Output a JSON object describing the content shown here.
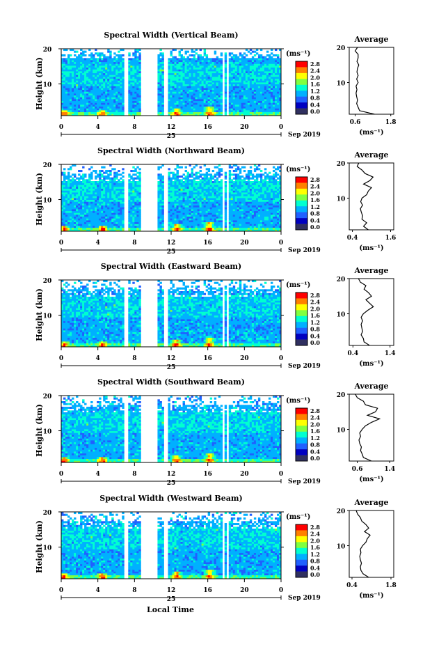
{
  "figure": {
    "xaxis_title": "Local Time",
    "day_label": "25",
    "month_label": "Sep 2019",
    "ylabel": "Height (km)",
    "unit_label": "(ms⁻¹)",
    "avg_title": "Average",
    "avg_xlabel": "(ms⁻¹)"
  },
  "colorbar": {
    "ticks": [
      "2.8",
      "2.4",
      "2.0",
      "1.6",
      "1.2",
      "0.8",
      "0.4",
      "0.0"
    ],
    "colors": [
      "#ff0000",
      "#ff8000",
      "#ffff00",
      "#80ff40",
      "#00ffd0",
      "#00b0ff",
      "#2060ff",
      "#0000c0",
      "#303060"
    ]
  },
  "chart_data": [
    {
      "type": "heatmap",
      "title": "Spectral Width (Vertical Beam)",
      "x_ticks": [
        "0",
        "4",
        "8",
        "12",
        "16",
        "20",
        "0"
      ],
      "y_ticks": [
        "20",
        "10"
      ],
      "xlim": [
        0,
        24
      ],
      "ylim": [
        1,
        20
      ],
      "gaps_hours": [
        [
          6.9,
          7.3
        ],
        [
          8.7,
          10.4
        ],
        [
          11.1,
          11.7
        ],
        [
          17.6,
          17.8
        ],
        [
          18.1,
          18.3
        ]
      ],
      "average_profile": {
        "x_ticks": [
          "0.6",
          "1.8"
        ],
        "xlim": [
          0.4,
          1.9
        ],
        "y_ticks": [
          "20",
          "10"
        ],
        "ylim": [
          1,
          20
        ],
        "height_km": [
          1,
          2,
          3,
          4,
          5,
          6,
          7,
          8,
          9,
          10,
          11,
          12,
          13,
          14,
          15,
          16,
          17,
          18,
          19,
          20
        ],
        "width_ms": [
          1.25,
          0.75,
          0.7,
          0.65,
          0.68,
          0.65,
          0.63,
          0.66,
          0.63,
          0.7,
          0.65,
          0.7,
          0.66,
          0.68,
          0.72,
          0.66,
          0.7,
          0.7,
          0.6,
          0.68
        ]
      }
    },
    {
      "type": "heatmap",
      "title": "Spectral Width (Northward Beam)",
      "x_ticks": [
        "0",
        "4",
        "8",
        "12",
        "16",
        "20",
        "0"
      ],
      "y_ticks": [
        "20",
        "10"
      ],
      "xlim": [
        0,
        24
      ],
      "ylim": [
        1,
        20
      ],
      "gaps_hours": [
        [
          6.9,
          7.3
        ],
        [
          8.7,
          10.4
        ],
        [
          11.1,
          11.7
        ],
        [
          17.6,
          17.8
        ],
        [
          18.1,
          18.3
        ]
      ],
      "average_profile": {
        "x_ticks": [
          "0.4",
          "1.6"
        ],
        "xlim": [
          0.3,
          1.7
        ],
        "y_ticks": [
          "20",
          "10"
        ],
        "ylim": [
          1,
          20
        ],
        "height_km": [
          1,
          2,
          3,
          4,
          5,
          6,
          7,
          8,
          9,
          10,
          11,
          12,
          13,
          14,
          15,
          16,
          17,
          18,
          19,
          20
        ],
        "width_ms": [
          0.9,
          0.75,
          0.85,
          0.7,
          0.72,
          0.68,
          0.65,
          0.72,
          0.66,
          0.7,
          0.85,
          0.9,
          1.0,
          0.75,
          0.95,
          1.05,
          0.8,
          0.7,
          0.55,
          0.6
        ]
      }
    },
    {
      "type": "heatmap",
      "title": "Spectral Width (Eastward Beam)",
      "x_ticks": [
        "0",
        "4",
        "8",
        "12",
        "16",
        "20",
        "0"
      ],
      "y_ticks": [
        "20",
        "10"
      ],
      "xlim": [
        0,
        24
      ],
      "ylim": [
        1,
        20
      ],
      "gaps_hours": [
        [
          6.9,
          7.3
        ],
        [
          8.7,
          10.4
        ],
        [
          11.1,
          11.7
        ],
        [
          17.6,
          17.8
        ],
        [
          18.1,
          18.3
        ]
      ],
      "average_profile": {
        "x_ticks": [
          "0.4",
          "1.4"
        ],
        "xlim": [
          0.3,
          1.5
        ],
        "y_ticks": [
          "20",
          "10"
        ],
        "ylim": [
          1,
          20
        ],
        "height_km": [
          1,
          2,
          3,
          4,
          5,
          6,
          7,
          8,
          9,
          10,
          11,
          12,
          13,
          14,
          15,
          16,
          17,
          18,
          19,
          20
        ],
        "width_ms": [
          0.85,
          0.7,
          0.68,
          0.62,
          0.66,
          0.64,
          0.62,
          0.66,
          0.62,
          0.68,
          0.8,
          0.95,
          0.85,
          0.75,
          0.9,
          0.82,
          0.7,
          0.75,
          0.6,
          0.55
        ]
      }
    },
    {
      "type": "heatmap",
      "title": "Spectral Width (Southward Beam)",
      "x_ticks": [
        "0",
        "4",
        "8",
        "12",
        "16",
        "20",
        "0"
      ],
      "y_ticks": [
        "20",
        "10"
      ],
      "xlim": [
        0,
        24
      ],
      "ylim": [
        1,
        20
      ],
      "gaps_hours": [
        [
          6.9,
          7.3
        ],
        [
          8.7,
          10.4
        ],
        [
          11.1,
          11.7
        ],
        [
          17.6,
          17.8
        ],
        [
          18.1,
          18.3
        ]
      ],
      "average_profile": {
        "x_ticks": [
          "0.6",
          "1.4"
        ],
        "xlim": [
          0.4,
          1.5
        ],
        "y_ticks": [
          "20",
          "10"
        ],
        "ylim": [
          1,
          20
        ],
        "height_km": [
          1,
          2,
          3,
          4,
          5,
          6,
          7,
          8,
          9,
          10,
          11,
          12,
          13,
          14,
          15,
          16,
          17,
          18,
          19,
          20
        ],
        "width_ms": [
          0.95,
          0.75,
          0.72,
          0.68,
          0.7,
          0.66,
          0.64,
          0.68,
          0.66,
          0.72,
          0.8,
          0.95,
          1.15,
          0.85,
          1.05,
          1.1,
          0.8,
          0.75,
          0.6,
          0.55
        ]
      }
    },
    {
      "type": "heatmap",
      "title": "Spectral Width (Westward Beam)",
      "x_ticks": [
        "0",
        "4",
        "8",
        "12",
        "16",
        "20",
        "0"
      ],
      "y_ticks": [
        "20",
        "10"
      ],
      "xlim": [
        0,
        24
      ],
      "ylim": [
        1,
        20
      ],
      "gaps_hours": [
        [
          6.9,
          7.3
        ],
        [
          8.7,
          10.4
        ],
        [
          11.1,
          11.7
        ],
        [
          17.6,
          17.8
        ],
        [
          18.1,
          18.3
        ]
      ],
      "average_profile": {
        "x_ticks": [
          "0.4",
          "1.8"
        ],
        "xlim": [
          0.3,
          1.9
        ],
        "y_ticks": [
          "20",
          "10"
        ],
        "ylim": [
          1,
          20
        ],
        "height_km": [
          1,
          2,
          3,
          4,
          5,
          6,
          7,
          8,
          9,
          10,
          11,
          12,
          13,
          14,
          15,
          16,
          17,
          18,
          19,
          20
        ],
        "width_ms": [
          1.0,
          0.8,
          0.72,
          0.7,
          0.74,
          0.7,
          0.68,
          0.72,
          0.7,
          0.78,
          0.9,
          0.95,
          1.05,
          0.85,
          1.0,
          0.9,
          0.75,
          0.7,
          0.6,
          0.55
        ]
      }
    }
  ]
}
